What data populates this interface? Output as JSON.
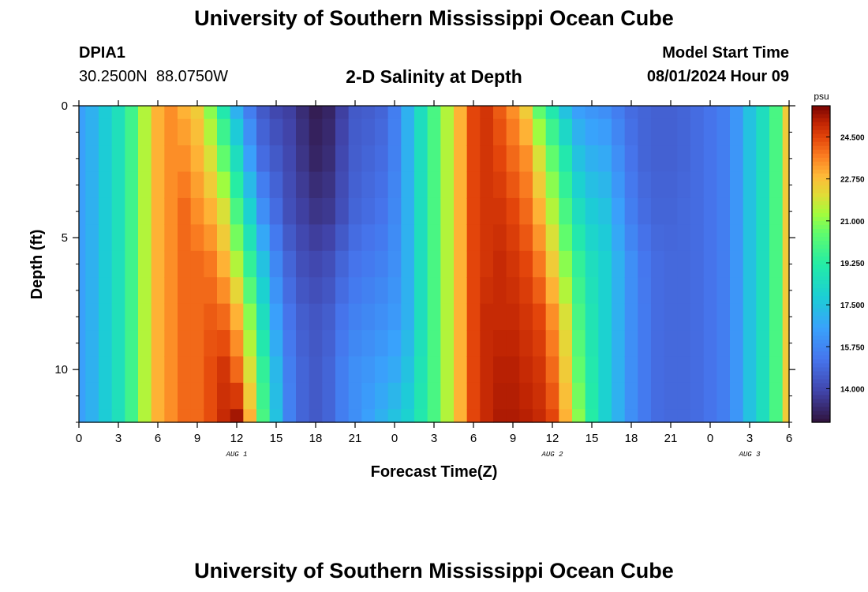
{
  "header": {
    "title": "University of Southern Mississippi Ocean Cube",
    "station_id": "DPIA1",
    "coordinates": "30.2500N  88.0750W",
    "subtitle": "2-D Salinity at Depth",
    "model_start_label": "Model Start Time",
    "model_start_value": "08/01/2024 Hour 09"
  },
  "footer": {
    "title": "University of Southern Mississippi Ocean Cube"
  },
  "chart_data": {
    "type": "heatmap",
    "title": "2-D Salinity at Depth",
    "xlabel": "Forecast Time(Z)",
    "ylabel": "Depth (ft)",
    "x_range_hours": [
      0,
      54
    ],
    "y_range_ft": [
      0,
      12
    ],
    "x_tick_labels": [
      "0",
      "3",
      "6",
      "9",
      "12",
      "15",
      "18",
      "21",
      "0",
      "3",
      "6",
      "9",
      "12",
      "15",
      "18",
      "21",
      "0",
      "3",
      "6"
    ],
    "y_tick_labels": [
      "0",
      "5",
      "10"
    ],
    "y_tick_values": [
      0,
      5,
      10
    ],
    "date_labels": [
      {
        "text": "AUG 1",
        "hour": 12
      },
      {
        "text": "AUG 2",
        "hour": 36
      },
      {
        "text": "AUG 3",
        "hour": 51
      }
    ],
    "colorbar": {
      "unit": "psu",
      "range": [
        12.6,
        25.8
      ],
      "tick_values": [
        14.0,
        15.75,
        17.5,
        19.25,
        21.0,
        22.75,
        24.5
      ],
      "tick_labels": [
        "14.000",
        "15.750",
        "17.500",
        "19.250",
        "21.000",
        "22.750",
        "24.500"
      ]
    },
    "n_time_steps": 55,
    "depths_ft": [
      0,
      1,
      2,
      3,
      4,
      5,
      6,
      7,
      8,
      9,
      10,
      11,
      12
    ],
    "profiles": [
      {
        "depth_ft": 0,
        "hours": [
          0,
          1,
          2,
          3,
          4,
          5,
          6,
          7,
          8,
          9,
          10,
          11,
          12,
          13,
          14,
          15,
          16,
          17,
          18,
          19,
          20,
          21,
          22,
          23,
          24,
          25,
          26,
          27,
          28,
          29,
          30,
          31,
          32,
          33,
          34,
          35,
          36,
          37,
          38,
          39,
          40,
          41,
          42,
          43,
          44,
          45,
          46,
          47,
          48,
          49,
          50,
          51,
          52,
          53,
          54
        ],
        "values": [
          16.5,
          17,
          17.8,
          18.6,
          19.8,
          21.5,
          23,
          23.5,
          23,
          22.5,
          21,
          19,
          17,
          15.5,
          14.5,
          14,
          13.8,
          13.3,
          12.9,
          13.1,
          13.8,
          14.5,
          14.6,
          14.8,
          15.5,
          17,
          18.5,
          20,
          21.5,
          23,
          24.5,
          24.8,
          24.2,
          23.5,
          22.5,
          20.5,
          19,
          17.5,
          16.5,
          16.2,
          16,
          15.5,
          15,
          14.8,
          14.7,
          14.7,
          14.8,
          15,
          15.2,
          15.5,
          16.2,
          17.5,
          18.5,
          20,
          22.5
        ]
      },
      {
        "depth_ft": 2,
        "hours": [
          0,
          1,
          2,
          3,
          4,
          5,
          6,
          7,
          8,
          9,
          10,
          11,
          12,
          13,
          14,
          15,
          16,
          17,
          18,
          19,
          20,
          21,
          22,
          23,
          24,
          25,
          26,
          27,
          28,
          29,
          30,
          31,
          32,
          33,
          34,
          35,
          36,
          37,
          38,
          39,
          40,
          41,
          42,
          43,
          44,
          45,
          46,
          47,
          48,
          49,
          50,
          51,
          52,
          53,
          54
        ],
        "values": [
          16.5,
          17,
          17.8,
          18.6,
          19.8,
          21.5,
          23,
          23.5,
          23.5,
          23,
          22,
          20.5,
          18.5,
          16.5,
          15,
          14.5,
          14,
          13.5,
          13.1,
          13.3,
          14,
          14.6,
          14.8,
          15,
          15.6,
          17,
          18.5,
          20,
          21.5,
          23,
          24.5,
          24.8,
          24.5,
          24,
          23.5,
          22,
          20.5,
          19,
          17.5,
          17,
          16.8,
          16,
          15.2,
          14.8,
          14.7,
          14.7,
          14.8,
          15,
          15.2,
          15.5,
          16.2,
          17.5,
          18.5,
          20,
          22.5
        ]
      },
      {
        "depth_ft": 4,
        "hours": [
          0,
          1,
          2,
          3,
          4,
          5,
          6,
          7,
          8,
          9,
          10,
          11,
          12,
          13,
          14,
          15,
          16,
          17,
          18,
          19,
          20,
          21,
          22,
          23,
          24,
          25,
          26,
          27,
          28,
          29,
          30,
          31,
          32,
          33,
          34,
          35,
          36,
          37,
          38,
          39,
          40,
          41,
          42,
          43,
          44,
          45,
          46,
          47,
          48,
          49,
          50,
          51,
          52,
          53,
          54
        ],
        "values": [
          16.5,
          17,
          17.8,
          18.6,
          19.8,
          21.5,
          23,
          23.5,
          24,
          23.5,
          23,
          22,
          20,
          18,
          16,
          15,
          14.2,
          13.8,
          13.5,
          13.6,
          14.2,
          14.8,
          15,
          15.2,
          15.8,
          17,
          18.5,
          20,
          21.5,
          23,
          24.5,
          24.8,
          24.8,
          24.5,
          24,
          23,
          21.5,
          20,
          18.5,
          17.8,
          17.5,
          16.5,
          15.5,
          15,
          14.8,
          14.8,
          14.9,
          15,
          15.2,
          15.5,
          16.2,
          17.5,
          18.5,
          20,
          22.5
        ]
      },
      {
        "depth_ft": 6,
        "hours": [
          0,
          1,
          2,
          3,
          4,
          5,
          6,
          7,
          8,
          9,
          10,
          11,
          12,
          13,
          14,
          15,
          16,
          17,
          18,
          19,
          20,
          21,
          22,
          23,
          24,
          25,
          26,
          27,
          28,
          29,
          30,
          31,
          32,
          33,
          34,
          35,
          36,
          37,
          38,
          39,
          40,
          41,
          42,
          43,
          44,
          45,
          46,
          47,
          48,
          49,
          50,
          51,
          52,
          53,
          54
        ],
        "values": [
          16.5,
          17,
          17.8,
          18.6,
          19.8,
          21.5,
          23,
          23.5,
          24,
          24,
          23.8,
          23,
          21.5,
          19.5,
          17.5,
          15.8,
          14.8,
          14.2,
          14,
          14.2,
          14.8,
          15.2,
          15.4,
          15.6,
          16,
          17,
          18.5,
          20,
          21.5,
          23,
          24.5,
          24.8,
          25,
          24.8,
          24.5,
          23.8,
          22.5,
          21,
          19.5,
          18.5,
          18,
          17,
          16,
          15.3,
          15,
          14.9,
          14.9,
          15,
          15.2,
          15.5,
          16.2,
          17.5,
          18.5,
          20,
          22.5
        ]
      },
      {
        "depth_ft": 8,
        "hours": [
          0,
          1,
          2,
          3,
          4,
          5,
          6,
          7,
          8,
          9,
          10,
          11,
          12,
          13,
          14,
          15,
          16,
          17,
          18,
          19,
          20,
          21,
          22,
          23,
          24,
          25,
          26,
          27,
          28,
          29,
          30,
          31,
          32,
          33,
          34,
          35,
          36,
          37,
          38,
          39,
          40,
          41,
          42,
          43,
          44,
          45,
          46,
          47,
          48,
          49,
          50,
          51,
          52,
          53,
          54
        ],
        "values": [
          16.5,
          17,
          17.8,
          18.6,
          19.8,
          21.5,
          23,
          23.5,
          24,
          24,
          24.2,
          24,
          23,
          21,
          18.5,
          16.5,
          15.2,
          14.6,
          14.4,
          14.6,
          15.2,
          15.6,
          15.8,
          16,
          16.3,
          17,
          18.5,
          20,
          21.5,
          23,
          24.5,
          25,
          25,
          25,
          24.8,
          24.5,
          23.5,
          22,
          20,
          18.8,
          18,
          17,
          16,
          15.4,
          15,
          14.9,
          14.9,
          15,
          15.2,
          15.5,
          16.2,
          17.5,
          18.5,
          20,
          22.5
        ]
      },
      {
        "depth_ft": 10,
        "hours": [
          0,
          1,
          2,
          3,
          4,
          5,
          6,
          7,
          8,
          9,
          10,
          11,
          12,
          13,
          14,
          15,
          16,
          17,
          18,
          19,
          20,
          21,
          22,
          23,
          24,
          25,
          26,
          27,
          28,
          29,
          30,
          31,
          32,
          33,
          34,
          35,
          36,
          37,
          38,
          39,
          40,
          41,
          42,
          43,
          44,
          45,
          46,
          47,
          48,
          49,
          50,
          51,
          52,
          53,
          54
        ],
        "values": [
          16.5,
          17,
          17.8,
          18.6,
          19.8,
          21.5,
          23,
          23.5,
          24,
          24,
          24.4,
          24.8,
          24,
          22,
          19.5,
          17.2,
          15.5,
          14.8,
          14.5,
          14.8,
          15.5,
          16,
          16.2,
          16.5,
          16.8,
          17.5,
          18.8,
          20,
          21.5,
          23,
          24.5,
          25,
          25.2,
          25.2,
          25,
          24.8,
          24,
          22.5,
          20.5,
          19,
          18,
          17,
          16,
          15.4,
          15,
          14.9,
          14.9,
          15,
          15.2,
          15.5,
          16.2,
          17.5,
          18.5,
          20,
          22.5
        ]
      },
      {
        "depth_ft": 12,
        "hours": [
          0,
          1,
          2,
          3,
          4,
          5,
          6,
          7,
          8,
          9,
          10,
          11,
          12,
          13,
          14,
          15,
          16,
          17,
          18,
          19,
          20,
          21,
          22,
          23,
          24,
          25,
          26,
          27,
          28,
          29,
          30,
          31,
          32,
          33,
          34,
          35,
          36,
          37,
          38,
          39,
          40,
          41,
          42,
          43,
          44,
          45,
          46,
          47,
          48,
          49,
          50,
          51,
          52,
          53,
          54
        ],
        "values": [
          16.5,
          17,
          17.8,
          18.6,
          19.8,
          21.5,
          23,
          23.5,
          24,
          24,
          24.4,
          25,
          25.4,
          23,
          20,
          17.5,
          15.6,
          14.8,
          14.5,
          14.8,
          15.5,
          16,
          16.5,
          17,
          17.5,
          18,
          19,
          20,
          21.5,
          23,
          24.5,
          25,
          25.3,
          25.3,
          25.2,
          25,
          24.5,
          23,
          21,
          19.2,
          18,
          17,
          16,
          15.4,
          15,
          14.9,
          14.9,
          15,
          15.2,
          15.5,
          16.2,
          17.5,
          18.5,
          20,
          22.5
        ]
      }
    ]
  }
}
